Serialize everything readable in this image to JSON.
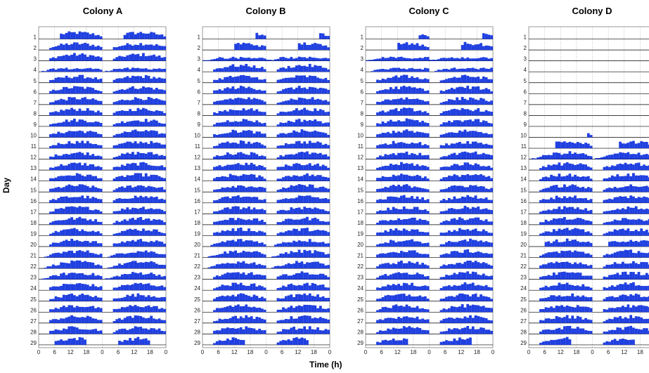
{
  "figure": {
    "ylabel": "Day",
    "xlabel": "Time (h)",
    "colors": {
      "bar": "#1f3fe0",
      "baseline": "#000000",
      "grid": "#9a9a9a",
      "frame": "#555555"
    }
  },
  "chart_data": [
    {
      "type": "bar",
      "title": "Colony A",
      "xlabel": "Time (h)",
      "ylabel": "Day",
      "x_ticks": [
        "0",
        "6",
        "12",
        "18",
        "0",
        "6",
        "12",
        "18",
        "0"
      ],
      "days": [
        "1",
        "2",
        "3",
        "4",
        "5",
        "6",
        "7",
        "8",
        "9",
        "10",
        "11",
        "12",
        "13",
        "14",
        "15",
        "16",
        "17",
        "18",
        "19",
        "20",
        "21",
        "22",
        "23",
        "24",
        "25",
        "26",
        "27",
        "28",
        "29"
      ],
      "series_description": "double-plotted activity per day",
      "active_hours": [
        [
          8,
          24
        ],
        [
          4,
          24
        ],
        [
          4,
          24
        ],
        [
          1,
          24
        ],
        [
          4,
          24
        ],
        [
          4,
          24
        ],
        [
          4,
          24
        ],
        [
          4,
          24
        ],
        [
          4,
          24
        ],
        [
          4,
          24
        ],
        [
          4,
          24
        ],
        [
          4,
          24
        ],
        [
          4,
          24
        ],
        [
          4,
          24
        ],
        [
          4,
          24
        ],
        [
          4,
          24
        ],
        [
          4,
          24
        ],
        [
          4,
          24
        ],
        [
          4,
          24
        ],
        [
          4,
          24
        ],
        [
          2,
          24
        ],
        [
          2,
          24
        ],
        [
          1,
          24
        ],
        [
          4,
          24
        ],
        [
          4,
          24
        ],
        [
          4,
          24
        ],
        [
          4,
          24
        ],
        [
          4,
          24
        ],
        [
          6,
          18
        ]
      ]
    },
    {
      "type": "bar",
      "title": "Colony B",
      "xlabel": "Time (h)",
      "ylabel": "Day",
      "x_ticks": [
        "0",
        "6",
        "12",
        "18",
        "0",
        "6",
        "12",
        "18",
        "0"
      ],
      "days": [
        "1",
        "2",
        "3",
        "4",
        "5",
        "6",
        "7",
        "8",
        "9",
        "10",
        "11",
        "12",
        "13",
        "14",
        "15",
        "16",
        "17",
        "18",
        "19",
        "20",
        "21",
        "22",
        "23",
        "24",
        "25",
        "26",
        "27",
        "28",
        "29"
      ],
      "active_hours": [
        [
          20,
          24
        ],
        [
          12,
          24
        ],
        [
          0,
          24
        ],
        [
          4,
          24
        ],
        [
          4,
          24
        ],
        [
          4,
          24
        ],
        [
          4,
          24
        ],
        [
          4,
          24
        ],
        [
          4,
          24
        ],
        [
          4,
          24
        ],
        [
          4,
          24
        ],
        [
          4,
          24
        ],
        [
          4,
          24
        ],
        [
          4,
          24
        ],
        [
          4,
          24
        ],
        [
          4,
          24
        ],
        [
          4,
          24
        ],
        [
          4,
          24
        ],
        [
          4,
          24
        ],
        [
          3,
          24
        ],
        [
          2,
          24
        ],
        [
          2,
          24
        ],
        [
          4,
          24
        ],
        [
          4,
          24
        ],
        [
          4,
          24
        ],
        [
          4,
          24
        ],
        [
          4,
          24
        ],
        [
          4,
          24
        ],
        [
          4,
          16
        ]
      ]
    },
    {
      "type": "bar",
      "title": "Colony C",
      "xlabel": "Time (h)",
      "ylabel": "Day",
      "x_ticks": [
        "0",
        "6",
        "12",
        "18",
        "0",
        "6",
        "12",
        "18",
        "0"
      ],
      "days": [
        "1",
        "2",
        "3",
        "4",
        "5",
        "6",
        "7",
        "8",
        "9",
        "10",
        "11",
        "12",
        "13",
        "14",
        "15",
        "16",
        "17",
        "18",
        "19",
        "20",
        "21",
        "22",
        "23",
        "24",
        "25",
        "26",
        "27",
        "28",
        "29"
      ],
      "active_hours": [
        [
          20,
          24
        ],
        [
          12,
          24
        ],
        [
          0,
          24
        ],
        [
          2,
          24
        ],
        [
          4,
          24
        ],
        [
          4,
          24
        ],
        [
          4,
          24
        ],
        [
          4,
          24
        ],
        [
          4,
          24
        ],
        [
          4,
          24
        ],
        [
          4,
          24
        ],
        [
          4,
          24
        ],
        [
          4,
          24
        ],
        [
          4,
          24
        ],
        [
          4,
          24
        ],
        [
          4,
          24
        ],
        [
          4,
          24
        ],
        [
          4,
          24
        ],
        [
          4,
          24
        ],
        [
          4,
          24
        ],
        [
          4,
          24
        ],
        [
          4,
          24
        ],
        [
          4,
          24
        ],
        [
          4,
          24
        ],
        [
          4,
          24
        ],
        [
          4,
          24
        ],
        [
          4,
          24
        ],
        [
          4,
          24
        ],
        [
          4,
          16
        ]
      ]
    },
    {
      "type": "bar",
      "title": "Colony D",
      "xlabel": "Time (h)",
      "ylabel": "Day",
      "x_ticks": [
        "0",
        "6",
        "12",
        "18",
        "0",
        "6",
        "12",
        "18",
        "0"
      ],
      "days": [
        "1",
        "2",
        "3",
        "4",
        "5",
        "6",
        "7",
        "8",
        "9",
        "10",
        "11",
        "12",
        "13",
        "14",
        "15",
        "16",
        "17",
        "18",
        "19",
        "20",
        "21",
        "22",
        "23",
        "24",
        "25",
        "26",
        "27",
        "28",
        "29"
      ],
      "active_hours": [
        null,
        null,
        null,
        null,
        null,
        null,
        null,
        null,
        null,
        [
          22,
          24
        ],
        [
          10,
          24
        ],
        [
          1,
          24
        ],
        [
          4,
          24
        ],
        [
          4,
          24
        ],
        [
          4,
          24
        ],
        [
          4,
          24
        ],
        [
          4,
          24
        ],
        [
          4,
          24
        ],
        [
          4,
          24
        ],
        [
          6,
          24
        ],
        [
          4,
          24
        ],
        [
          4,
          24
        ],
        [
          4,
          24
        ],
        [
          4,
          24
        ],
        [
          4,
          24
        ],
        [
          4,
          24
        ],
        [
          4,
          24
        ],
        [
          4,
          24
        ],
        [
          4,
          16
        ]
      ]
    }
  ]
}
